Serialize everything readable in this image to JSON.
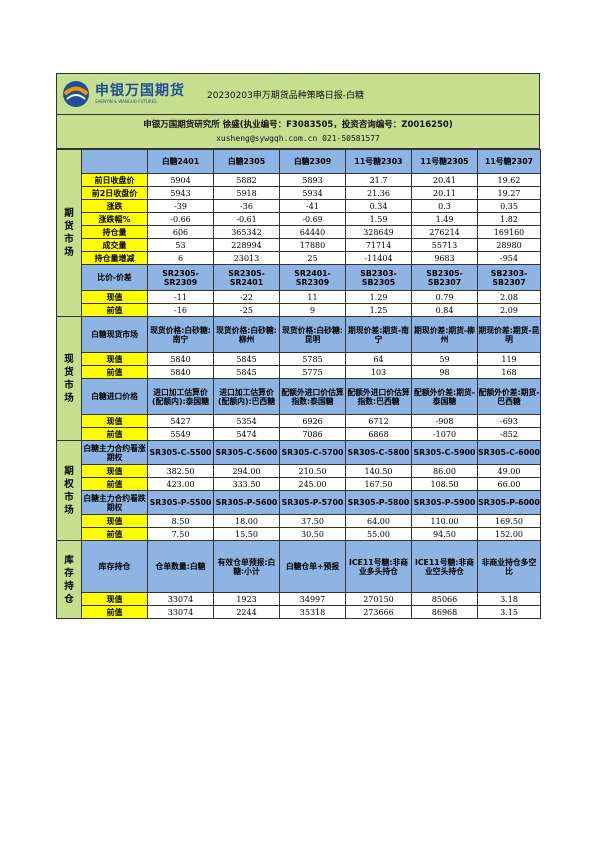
{
  "header": {
    "logo_text": "申银万国期货",
    "logo_sub": "SHENYIN & WANGUO FUTURES",
    "title": "20230203申万期货品种策略日报-白糖",
    "institute": "申银万国期货研究所    徐盛(执业编号：F3083505，投资咨询编号：Z0016250)",
    "contact": "xusheng@sywgqh.com.cn 021-50581577"
  },
  "futures": {
    "section": "期货市场",
    "columns": [
      "白糖2401",
      "白糖2305",
      "白糖2309",
      "11号糖2303",
      "11号糖2305",
      "11号糖2307"
    ],
    "rows": [
      {
        "label": "前日收盘价",
        "values": [
          "5904",
          "5882",
          "5893",
          "21.7",
          "20.41",
          "19.62"
        ]
      },
      {
        "label": "前2日收盘价",
        "values": [
          "5943",
          "5918",
          "5934",
          "21.36",
          "20.11",
          "19.27"
        ]
      },
      {
        "label": "涨跌",
        "values": [
          "-39",
          "-36",
          "-41",
          "0.34",
          "0.3",
          "0.35"
        ]
      },
      {
        "label": "涨跌幅%",
        "values": [
          "-0.66",
          "-0.61",
          "-0.69",
          "1.59",
          "1.49",
          "1.82"
        ]
      },
      {
        "label": "持仓量",
        "values": [
          "606",
          "365342",
          "64440",
          "328649",
          "276214",
          "169160"
        ]
      },
      {
        "label": "成交量",
        "values": [
          "53",
          "228994",
          "17880",
          "71714",
          "55713",
          "28980"
        ]
      },
      {
        "label": "持仓量增减",
        "values": [
          "6",
          "23013",
          "25",
          "-11404",
          "9683",
          "-954"
        ]
      }
    ],
    "spread_label": "比价-价差",
    "spread_columns": [
      "SR2305-SR2309",
      "SR2305-SR2401",
      "SR2401-SR2309",
      "SB2303-SB2305",
      "SB2305-SB2307",
      "SB2303-SB2307"
    ],
    "spread_rows": [
      {
        "label": "现值",
        "values": [
          "-11",
          "-22",
          "11",
          "1.29",
          "0.79",
          "2.08"
        ]
      },
      {
        "label": "前值",
        "values": [
          "-16",
          "-25",
          "9",
          "1.25",
          "0.84",
          "2.09"
        ]
      }
    ]
  },
  "spot": {
    "section": "现货市场",
    "label1": "白糖现货市场",
    "columns1": [
      "现货价格:白砂糖:南宁",
      "现货价格:白砂糖:柳州",
      "现货价格:白砂糖:昆明",
      "期现价差:期货-南宁",
      "期现价差:期货-柳州",
      "期现价差:期货-昆明"
    ],
    "rows1": [
      {
        "label": "现值",
        "values": [
          "5840",
          "5845",
          "5785",
          "64",
          "59",
          "119"
        ]
      },
      {
        "label": "前值",
        "values": [
          "5840",
          "5845",
          "5775",
          "103",
          "98",
          "168"
        ]
      }
    ],
    "label2": "白糖进口价格",
    "columns2": [
      "进口加工估算价(配额内):泰国糖",
      "进口加工估算价(配额内):巴西糖",
      "配额外进口价估算指数:泰国糖",
      "配额外进口价估算指数:巴西糖",
      "配额外价差:期货-泰国糖",
      "配额外价差:期货-巴西糖"
    ],
    "rows2": [
      {
        "label": "现值",
        "values": [
          "5427",
          "5354",
          "6926",
          "6712",
          "-908",
          "-693"
        ]
      },
      {
        "label": "前值",
        "values": [
          "5549",
          "5474",
          "7086",
          "6868",
          "-1070",
          "-852"
        ]
      }
    ]
  },
  "options": {
    "section": "期权市场",
    "label1": "白糖主力合约看涨期权",
    "columns1": [
      "SR305-C-5500",
      "SR305-C-5600",
      "SR305-C-5700",
      "SR305-C-5800",
      "SR305-C-5900",
      "SR305-C-6000"
    ],
    "rows1": [
      {
        "label": "现值",
        "values": [
          "382.50",
          "294.00",
          "210.50",
          "140.50",
          "86.00",
          "49.00"
        ]
      },
      {
        "label": "前值",
        "values": [
          "423.00",
          "333.50",
          "245.00",
          "167.50",
          "108.50",
          "66.00"
        ]
      }
    ],
    "label2": "白糖主力合约看跌期权",
    "columns2": [
      "SR305-P-5500",
      "SR305-P-5600",
      "SR305-P-5700",
      "SR305-P-5800",
      "SR305-P-5900",
      "SR305-P-6000"
    ],
    "rows2": [
      {
        "label": "现值",
        "values": [
          "8.50",
          "18.00",
          "37.50",
          "64.00",
          "110.00",
          "169.50"
        ]
      },
      {
        "label": "前值",
        "values": [
          "7.50",
          "15.50",
          "30.50",
          "55.00",
          "94.50",
          "152.00"
        ]
      }
    ]
  },
  "inventory": {
    "section": "库存持仓",
    "label": "库存持仓",
    "columns": [
      "仓单数量:白糖",
      "有效仓单预报:白糖:小计",
      "白糖仓单+预报",
      "ICE11号糖:非商业多头持仓",
      "ICE11号糖:非商业空头持仓",
      "非商业持仓多空比"
    ],
    "rows": [
      {
        "label": "现值",
        "values": [
          "33074",
          "1923",
          "34997",
          "270150",
          "85066",
          "3.18"
        ]
      },
      {
        "label": "前值",
        "values": [
          "33074",
          "2244",
          "35318",
          "273666",
          "86968",
          "3.15"
        ]
      }
    ]
  },
  "colors": {
    "green": "#c6df8f",
    "yellow": "#ffff00",
    "blue": "#8eb4e3",
    "brand": "#1f4f9a"
  }
}
